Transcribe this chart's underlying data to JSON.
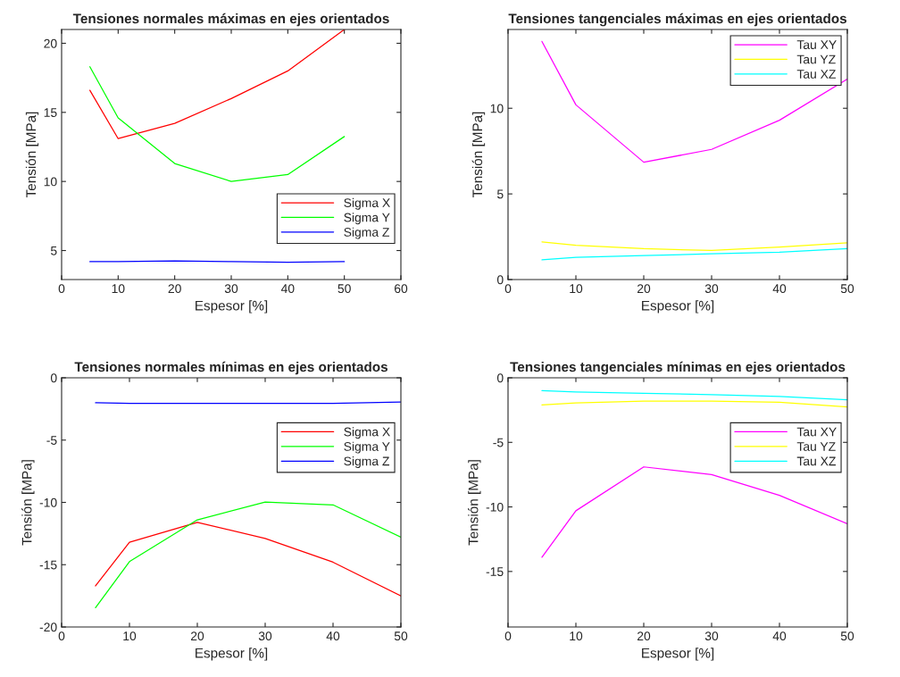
{
  "chart_data": [
    {
      "type": "line",
      "title": "Tensiones normales máximas en ejes orientados",
      "xlabel": "Espesor [%]",
      "ylabel": "Tensión [MPa]",
      "x": [
        5,
        10,
        20,
        30,
        40,
        50
      ],
      "xlim": [
        0,
        60
      ],
      "xticks": [
        0,
        10,
        20,
        30,
        40,
        50,
        60
      ],
      "ylim": [
        2.9,
        21
      ],
      "yticks": [
        5,
        10,
        15,
        20
      ],
      "legend": "bottom right",
      "series": [
        {
          "name": "Sigma X",
          "color": "#ff0000",
          "values": [
            16.6,
            13.1,
            14.2,
            16.0,
            18.0,
            21.0
          ]
        },
        {
          "name": "Sigma Y",
          "color": "#00ff00",
          "values": [
            18.3,
            14.6,
            11.3,
            10.0,
            10.5,
            13.25
          ]
        },
        {
          "name": "Sigma Z",
          "color": "#0000ff",
          "values": [
            4.2,
            4.2,
            4.25,
            4.2,
            4.15,
            4.2
          ]
        }
      ]
    },
    {
      "type": "line",
      "title": "Tensiones tangenciales máximas en ejes orientados",
      "xlabel": "Espesor [%]",
      "ylabel": "Tensión [MPa]",
      "x": [
        5,
        10,
        20,
        30,
        40,
        50
      ],
      "xlim": [
        0,
        50
      ],
      "xticks": [
        0,
        10,
        20,
        30,
        40,
        50
      ],
      "ylim": [
        0,
        14.6
      ],
      "yticks": [
        0,
        5,
        10
      ],
      "legend": "top right",
      "series": [
        {
          "name": "Tau XY",
          "color": "#ff00ff",
          "values": [
            13.9,
            10.2,
            6.85,
            7.6,
            9.3,
            11.7
          ]
        },
        {
          "name": "Tau YZ",
          "color": "#ffff00",
          "values": [
            2.2,
            2.0,
            1.8,
            1.7,
            1.9,
            2.15
          ]
        },
        {
          "name": "Tau XZ",
          "color": "#00ffff",
          "values": [
            1.15,
            1.3,
            1.4,
            1.5,
            1.6,
            1.8
          ]
        }
      ]
    },
    {
      "type": "line",
      "title": "Tensiones normales mínimas en ejes orientados",
      "xlabel": "Espesor [%]",
      "ylabel": "Tensión [MPa]",
      "x": [
        5,
        10,
        20,
        30,
        40,
        50
      ],
      "xlim": [
        0,
        50
      ],
      "xticks": [
        0,
        10,
        20,
        30,
        40,
        50
      ],
      "ylim": [
        -20,
        0
      ],
      "yticks": [
        -20,
        -15,
        -10,
        -5,
        0
      ],
      "legend": "right",
      "series": [
        {
          "name": "Sigma X",
          "color": "#ff0000",
          "values": [
            -16.7,
            -13.2,
            -11.6,
            -12.9,
            -14.8,
            -17.5
          ]
        },
        {
          "name": "Sigma Y",
          "color": "#00ff00",
          "values": [
            -18.45,
            -14.75,
            -11.4,
            -9.97,
            -10.2,
            -12.8
          ]
        },
        {
          "name": "Sigma Z",
          "color": "#0000ff",
          "values": [
            -2.0,
            -2.05,
            -2.05,
            -2.05,
            -2.05,
            -1.95
          ]
        }
      ]
    },
    {
      "type": "line",
      "title": "Tensiones tangenciales mínimas en ejes orientados",
      "xlabel": "Espesor [%]",
      "ylabel": "Tensión [MPa]",
      "x": [
        5,
        10,
        20,
        30,
        40,
        50
      ],
      "xlim": [
        0,
        50
      ],
      "xticks": [
        0,
        10,
        20,
        30,
        40,
        50
      ],
      "ylim": [
        -19.3,
        0
      ],
      "yticks": [
        -15,
        -10,
        -5,
        0
      ],
      "legend": "right",
      "series": [
        {
          "name": "Tau XY",
          "color": "#ff00ff",
          "values": [
            -13.9,
            -10.3,
            -6.9,
            -7.5,
            -9.1,
            -11.3
          ]
        },
        {
          "name": "Tau YZ",
          "color": "#ffff00",
          "values": [
            -2.1,
            -1.95,
            -1.8,
            -1.8,
            -1.9,
            -2.25
          ]
        },
        {
          "name": "Tau XZ",
          "color": "#00ffff",
          "values": [
            -1.0,
            -1.1,
            -1.2,
            -1.3,
            -1.45,
            -1.7
          ]
        }
      ]
    }
  ]
}
